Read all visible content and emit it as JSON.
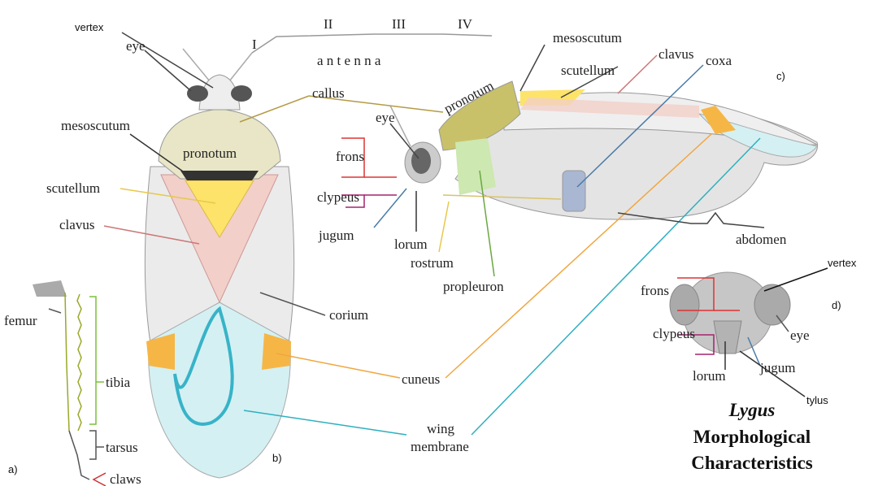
{
  "antenna": {
    "segments": [
      "I",
      "II",
      "III",
      "IV"
    ],
    "label": "a n t e n n a"
  },
  "dorsal": {
    "panel": "b)",
    "vertex": "vertex",
    "eye": "eye",
    "mesoscutum": "mesoscutum",
    "pronotum": "pronotum",
    "scutellum": "scutellum",
    "clavus": "clavus",
    "callus": "callus",
    "corium": "corium"
  },
  "shared": {
    "cuneus": "cuneus",
    "wing_membrane": [
      "wing",
      "membrane"
    ]
  },
  "lateral": {
    "panel": "c)",
    "mesoscutum": "mesoscutum",
    "pronotum": "pronotum",
    "scutellum": "scutellum",
    "clavus": "clavus",
    "coxa": "coxa",
    "eye": "eye",
    "frons": "frons",
    "clypeus": "clypeus",
    "jugum": "jugum",
    "lorum": "lorum",
    "rostrum": "rostrum",
    "propleuron": "propleuron",
    "abdomen": "abdomen"
  },
  "head": {
    "panel": "d)",
    "vertex": "vertex",
    "frons": "frons",
    "clypeus": "clypeus",
    "eye": "eye",
    "jugum": "jugum",
    "lorum": "lorum",
    "tylus": "tylus"
  },
  "leg": {
    "panel": "a)",
    "femur": "femur",
    "tibia": "tibia",
    "tarsus": "tarsus",
    "claws": "claws"
  },
  "title": {
    "genus": "Lygus",
    "lines": [
      "Morphological",
      "Characteristics"
    ]
  }
}
